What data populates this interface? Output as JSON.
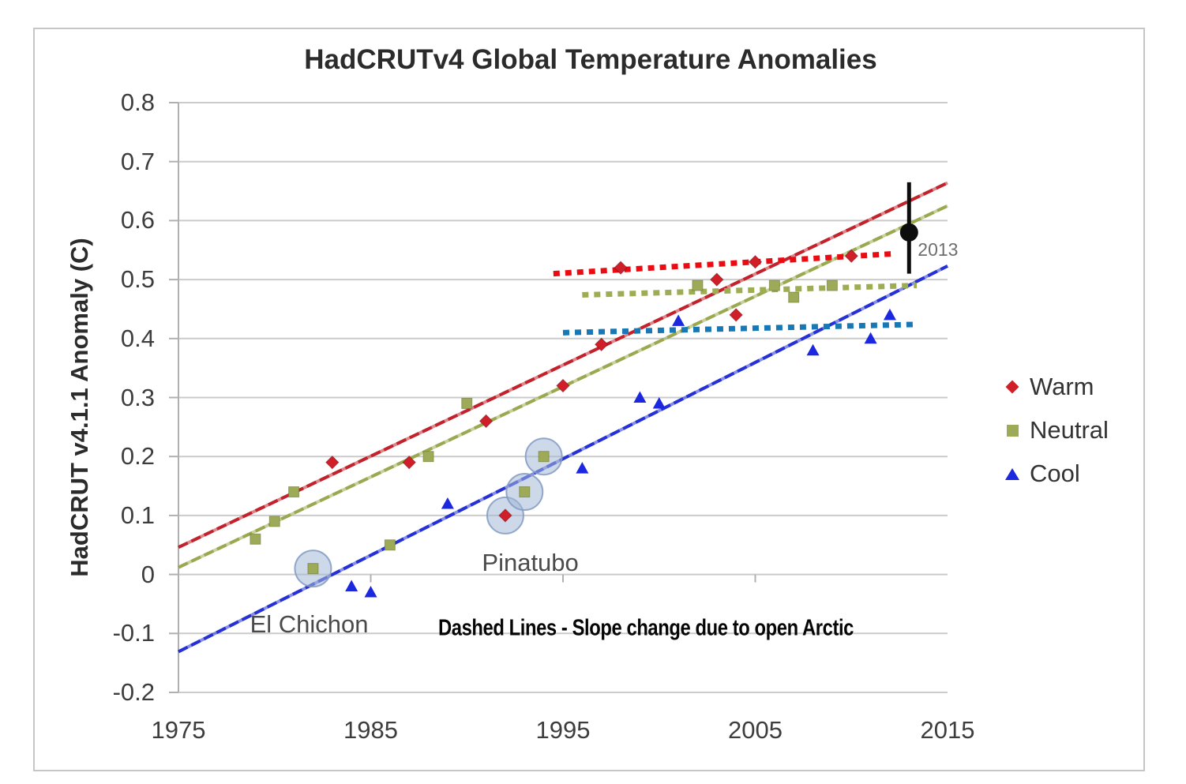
{
  "header": {
    "title": "HadCRUTv4 Global Temperature Anomalies"
  },
  "chart_data": {
    "type": "scatter",
    "title": "HadCRUTv4 Global Temperature Anomalies",
    "xlabel": "",
    "ylabel": "HadCRUT v4.1.1 Anomaly (C)",
    "xlim": [
      1975,
      2015
    ],
    "ylim": [
      -0.2,
      0.8
    ],
    "x_ticks": [
      "1975",
      "1985",
      "1995",
      "2005",
      "2015"
    ],
    "y_ticks": [
      "0.8",
      "0.7",
      "0.6",
      "0.5",
      "0.4",
      "0.3",
      "0.2",
      "0.1",
      "0",
      "-0.1",
      "-0.2"
    ],
    "grid": "horizontal",
    "legend_position": "right",
    "series": [
      {
        "name": "Warm",
        "marker": "diamond",
        "color": "#d01f28",
        "points": [
          [
            1983,
            0.19
          ],
          [
            1987,
            0.19
          ],
          [
            1991,
            0.26
          ],
          [
            1995,
            0.32
          ],
          [
            1997,
            0.39
          ],
          [
            1998,
            0.52
          ],
          [
            2003,
            0.5
          ],
          [
            2004,
            0.44
          ],
          [
            2005,
            0.53
          ],
          [
            2010,
            0.54
          ]
        ],
        "circled_points": [
          [
            1992,
            0.1
          ]
        ],
        "trend_line": {
          "x": [
            1975,
            2015
          ],
          "y": [
            0.046,
            0.664
          ],
          "color": "#c2222b"
        },
        "dotted_line": {
          "x": [
            1994.5,
            2012.3
          ],
          "y": [
            0.51,
            0.544
          ],
          "color": "#ea0c12"
        }
      },
      {
        "name": "Neutral",
        "marker": "square",
        "color": "#9dab58",
        "points": [
          [
            1979,
            0.06
          ],
          [
            1980,
            0.09
          ],
          [
            1981,
            0.14
          ],
          [
            1986,
            0.05
          ],
          [
            1988,
            0.2
          ],
          [
            1990,
            0.29
          ],
          [
            2002,
            0.49
          ],
          [
            2006,
            0.49
          ],
          [
            2007,
            0.47
          ],
          [
            2009,
            0.49
          ]
        ],
        "circled_points": [
          [
            1982,
            0.01
          ],
          [
            1993,
            0.14
          ],
          [
            1994,
            0.2
          ]
        ],
        "trend_line": {
          "x": [
            1975,
            2015
          ],
          "y": [
            0.012,
            0.625
          ],
          "color": "#9aa94f"
        },
        "dotted_line": {
          "x": [
            1996.0,
            2013.4
          ],
          "y": [
            0.474,
            0.49
          ],
          "color": "#9cad53"
        }
      },
      {
        "name": "Cool",
        "marker": "triangle",
        "color": "#1c27e0",
        "points": [
          [
            1984,
            -0.02
          ],
          [
            1985,
            -0.03
          ],
          [
            1989,
            0.12
          ],
          [
            1996,
            0.18
          ],
          [
            1999,
            0.3
          ],
          [
            2000,
            0.29
          ],
          [
            2001,
            0.43
          ],
          [
            2008,
            0.38
          ],
          [
            2011,
            0.4
          ],
          [
            2012,
            0.44
          ]
        ],
        "circled_points": [],
        "trend_line": {
          "x": [
            1975,
            2015
          ],
          "y": [
            -0.131,
            0.523
          ],
          "color": "#2531d6"
        },
        "dotted_line": {
          "x": [
            1995.0,
            2013.4
          ],
          "y": [
            0.41,
            0.424
          ],
          "color": "#1878b6"
        }
      }
    ],
    "special_point": {
      "label": "2013",
      "x": 2013,
      "y": 0.58,
      "error_low": 0.51,
      "error_high": 0.665,
      "color": "#0d0d0d"
    },
    "annotations": [
      {
        "id": "el-chichon",
        "text": "El Chichon",
        "x": 1981.8,
        "y": -0.085
      },
      {
        "id": "pinatubo",
        "text": "Pinatubo",
        "x": 1993.3,
        "y": 0.02
      }
    ],
    "note": "Dashed Lines - Slope change due to open Arctic",
    "highlight_style": {
      "fill": "rgba(164,184,214,0.55)",
      "stroke": "rgba(130,155,195,0.85)"
    },
    "gridline_color": "#cbcbcb",
    "axis_color": "#b0b0b0"
  },
  "legend": {
    "items": [
      {
        "label": "Warm"
      },
      {
        "label": "Neutral"
      },
      {
        "label": "Cool"
      }
    ]
  }
}
